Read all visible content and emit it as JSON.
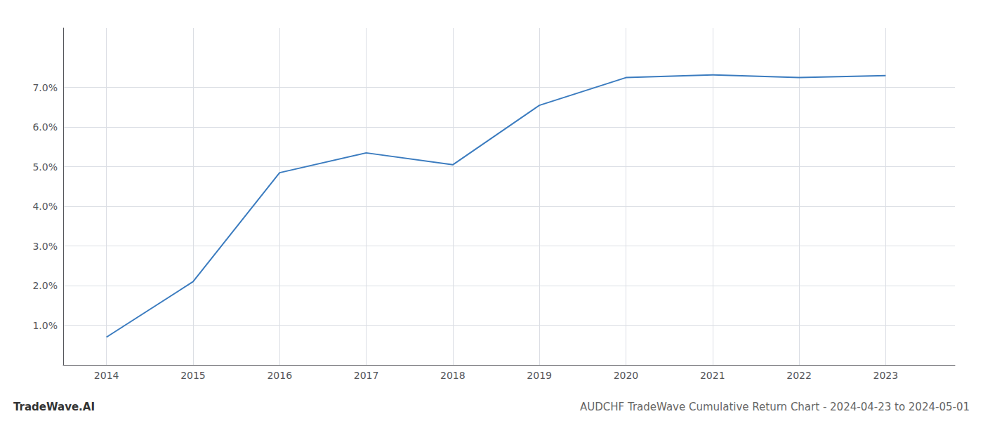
{
  "chart_data": {
    "type": "line",
    "title": "AUDCHF TradeWave Cumulative Return Chart - 2024-04-23 to 2024-05-01",
    "annotations": [
      "TradeWave.AI"
    ],
    "x": [
      2014,
      2015,
      2016,
      2017,
      2018,
      2019,
      2020,
      2021,
      2022,
      2023
    ],
    "values": [
      0.007,
      0.021,
      0.0485,
      0.0535,
      0.0505,
      0.0655,
      0.0725,
      0.0732,
      0.0725,
      0.073
    ],
    "color": "#3a7bbf",
    "xlim": [
      2013.5,
      2023.8
    ],
    "xticks": [
      2014,
      2015,
      2016,
      2017,
      2018,
      2019,
      2020,
      2021,
      2022,
      2023
    ],
    "ylim": [
      0.0,
      0.085
    ],
    "yticks": [
      {
        "value": 0.01,
        "label": "1.0%"
      },
      {
        "value": 0.02,
        "label": "2.0%"
      },
      {
        "value": 0.03,
        "label": "3.0%"
      },
      {
        "value": 0.04,
        "label": "4.0%"
      },
      {
        "value": 0.05,
        "label": "5.0%"
      },
      {
        "value": 0.06,
        "label": "6.0%"
      },
      {
        "value": 0.07,
        "label": "7.0%"
      }
    ],
    "grid": true
  }
}
